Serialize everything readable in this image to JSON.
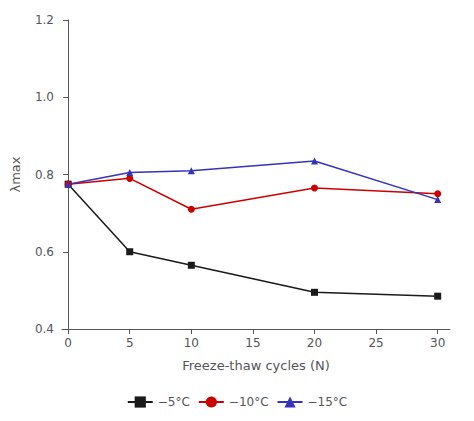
{
  "chart_data": {
    "type": "line",
    "x": [
      0,
      5,
      10,
      20,
      30
    ],
    "series": [
      {
        "name": "−5°C",
        "color": "#1a1a1a",
        "marker": "square",
        "values": [
          0.775,
          0.6,
          0.565,
          0.495,
          0.485
        ]
      },
      {
        "name": "−10°C",
        "color": "#cc0000",
        "marker": "circle",
        "values": [
          0.775,
          0.79,
          0.71,
          0.765,
          0.75
        ]
      },
      {
        "name": "−15°C",
        "color": "#3333bb",
        "marker": "triangle",
        "values": [
          0.775,
          0.805,
          0.81,
          0.835,
          0.735
        ]
      }
    ],
    "xlabel": "Freeze-thaw cycles (N)",
    "ylabel": "λmax",
    "xlim": [
      -0.5,
      31
    ],
    "ylim": [
      0.4,
      1.2
    ],
    "xticks": [
      0,
      5,
      10,
      15,
      20,
      25,
      30
    ],
    "yticks": [
      0.4,
      0.6,
      0.8,
      {
        "value": 1.0,
        "label": "1.0"
      },
      1.2
    ],
    "grid": false,
    "legend": "bottom"
  }
}
